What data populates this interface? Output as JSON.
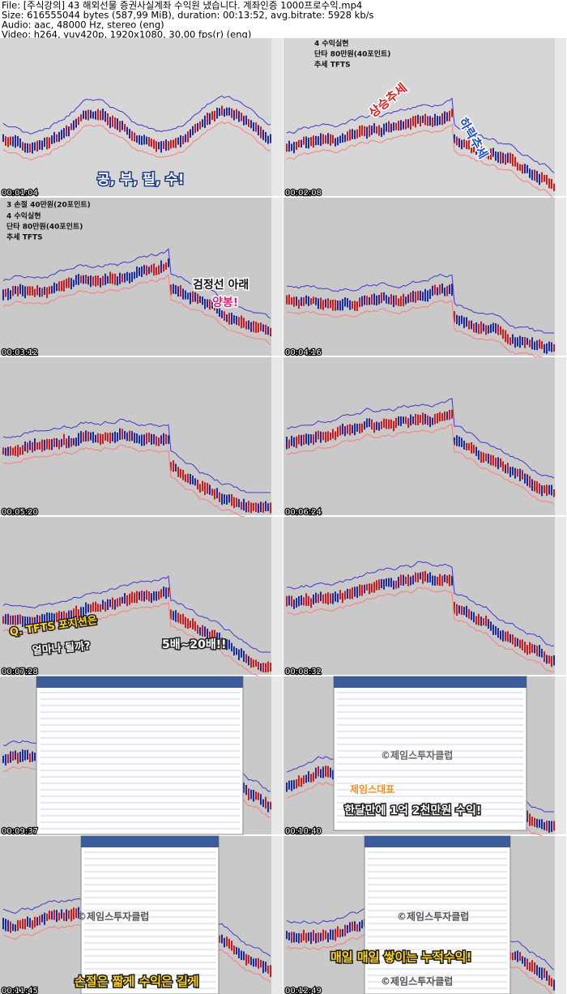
{
  "header": {
    "lines": [
      "File: [주식강의] 43 해외선물 증권사실계좌 수익원 냈습니다. 계좌인증 1000프로수익.mp4",
      "Size: 616555044 bytes (587,99 MiB), duration: 00:13:52, avg.bitrate: 5928 kb/s",
      "Audio: aac, 48000 Hz, stereo (eng)",
      "Video: h264, yuv420p, 1920x1080, 30,00 fps(r) (eng)"
    ]
  },
  "thumbnails": [
    {
      "timestamp": "00:01:04",
      "captions": [
        "공, 부, 필, 수!"
      ]
    },
    {
      "timestamp": "00:02:08",
      "captions": [
        "4 수익실현",
        "단타 80만원(40포인트)",
        "추세 TFTS",
        "상승추세",
        "하락추세"
      ]
    },
    {
      "timestamp": "00:03:12",
      "captions": [
        "3 손절 40만원(20포인트)",
        "4 수익실현",
        "단타 80만원(40포인트)",
        "추세 TFTS",
        "검정선 아래",
        "양봉!"
      ]
    },
    {
      "timestamp": "00:04:16"
    },
    {
      "timestamp": "00:05:20"
    },
    {
      "timestamp": "00:06:24"
    },
    {
      "timestamp": "00:07:28",
      "captions": [
        "Q. TFTS 포지션은",
        "얼마나 될까?",
        "5배~20배!!"
      ]
    },
    {
      "timestamp": "00:08:32"
    },
    {
      "timestamp": "00:09:37"
    },
    {
      "timestamp": "00:10:40",
      "captions": [
        "제임스대표",
        "한달만에 1억 2천만원 수익!",
        "©제임스투자클럽"
      ]
    },
    {
      "timestamp": "00:11:45",
      "captions": [
        "©제임스투자클럽",
        "손절은 짧게 수익은 길게"
      ]
    },
    {
      "timestamp": "00:12:49",
      "captions": [
        "©제임스투자클럽",
        "매일 매일 쌓이는 누적수익!",
        "©제임스투자클럽"
      ]
    }
  ]
}
